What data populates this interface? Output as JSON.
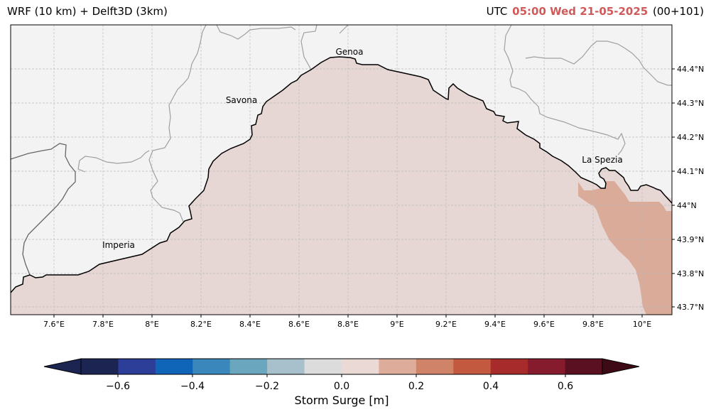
{
  "header": {
    "left_title": "WRF (10 km) + Delft3D (3km)",
    "utc_prefix": "UTC",
    "time": "05:00 Wed 21-05-2025",
    "lead": "(00+101)",
    "time_color": "#d05a5a"
  },
  "map": {
    "region": "Ligurian Sea",
    "lon_ticks": [
      "7.6°E",
      "7.8°E",
      "8°E",
      "8.2°E",
      "8.4°E",
      "8.6°E",
      "8.8°E",
      "9°E",
      "9.2°E",
      "9.4°E",
      "9.6°E",
      "9.8°E",
      "10°E"
    ],
    "lat_ticks": [
      "44.4°N",
      "44.3°N",
      "44.2°N",
      "44.1°N",
      "44°N",
      "43.9°N",
      "43.8°N",
      "43.7°N"
    ],
    "cities": [
      {
        "name": "Genoa"
      },
      {
        "name": "Savona"
      },
      {
        "name": "La Spezia"
      },
      {
        "name": "Imperia"
      }
    ],
    "land_color": "#f3f3f3",
    "sea_color": "#e7d7d4",
    "surge_patch_color": "#dbab9a",
    "surge_levels": {
      "sea_baseline": "0.0–0.1 m",
      "east_patch": "0.1–0.2 m"
    }
  },
  "colorbar": {
    "label": "Storm Surge [m]",
    "ticks": [
      "−0.6",
      "−0.4",
      "−0.2",
      "0.0",
      "0.2",
      "0.4",
      "0.6"
    ],
    "extend": "both",
    "colors": [
      "#1c2552",
      "#2c3e98",
      "#1165b8",
      "#3a88bb",
      "#6aa7bf",
      "#a8c0cb",
      "#dcdcdc",
      "#ebd9d5",
      "#ddac9b",
      "#cf8369",
      "#c35a3f",
      "#a82b2b",
      "#861b2e",
      "#5b1021"
    ],
    "under_color": "#1c2552",
    "over_color": "#3d0a15"
  }
}
